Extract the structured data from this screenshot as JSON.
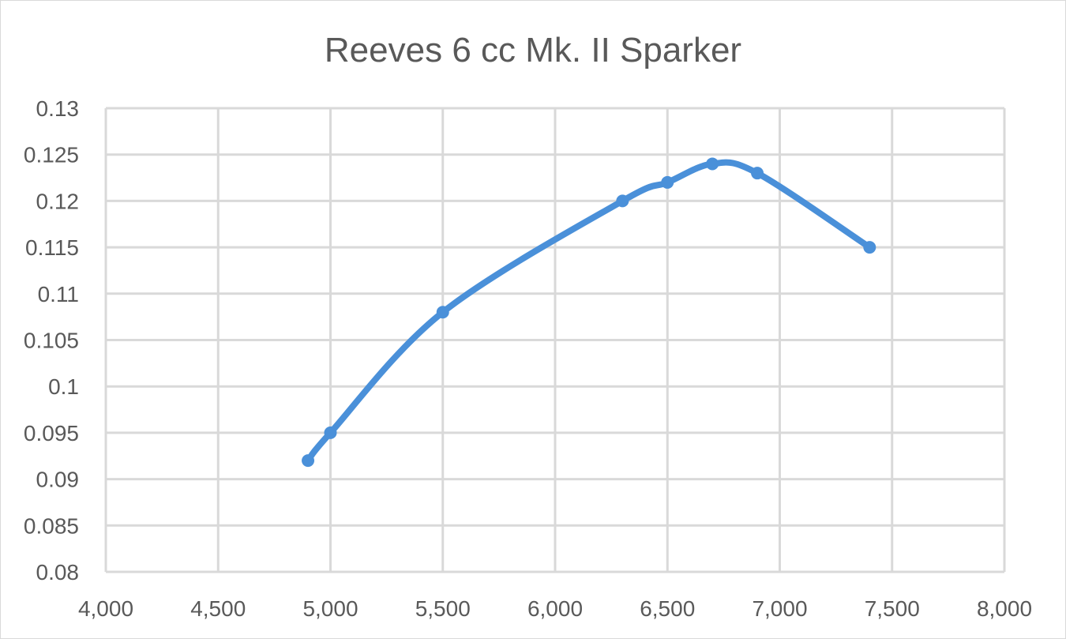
{
  "chart_data": {
    "type": "line",
    "title": "Reeves 6 cc Mk. II Sparker",
    "xlabel": "",
    "ylabel": "",
    "x": [
      4900,
      5000,
      5500,
      6300,
      6500,
      6700,
      6900,
      7400
    ],
    "series": [
      {
        "values": [
          0.092,
          0.095,
          0.108,
          0.12,
          0.122,
          0.124,
          0.123,
          0.115
        ],
        "color": "#4a90d9"
      }
    ],
    "xlim": [
      4000,
      8000
    ],
    "ylim": [
      0.08,
      0.13
    ],
    "x_ticks": [
      4000,
      4500,
      5000,
      5500,
      6000,
      6500,
      7000,
      7500,
      8000
    ],
    "x_tick_labels": [
      "4,000",
      "4,500",
      "5,000",
      "5,500",
      "6,000",
      "6,500",
      "7,000",
      "7,500",
      "8,000"
    ],
    "y_ticks": [
      0.08,
      0.085,
      0.09,
      0.095,
      0.1,
      0.105,
      0.11,
      0.115,
      0.12,
      0.125,
      0.13
    ],
    "y_tick_labels": [
      "0.08",
      "0.085",
      "0.09",
      "0.095",
      "0.1",
      "0.105",
      "0.11",
      "0.115",
      "0.12",
      "0.125",
      "0.13"
    ],
    "grid": true,
    "smooth": true,
    "markers": true,
    "legend": "none"
  }
}
